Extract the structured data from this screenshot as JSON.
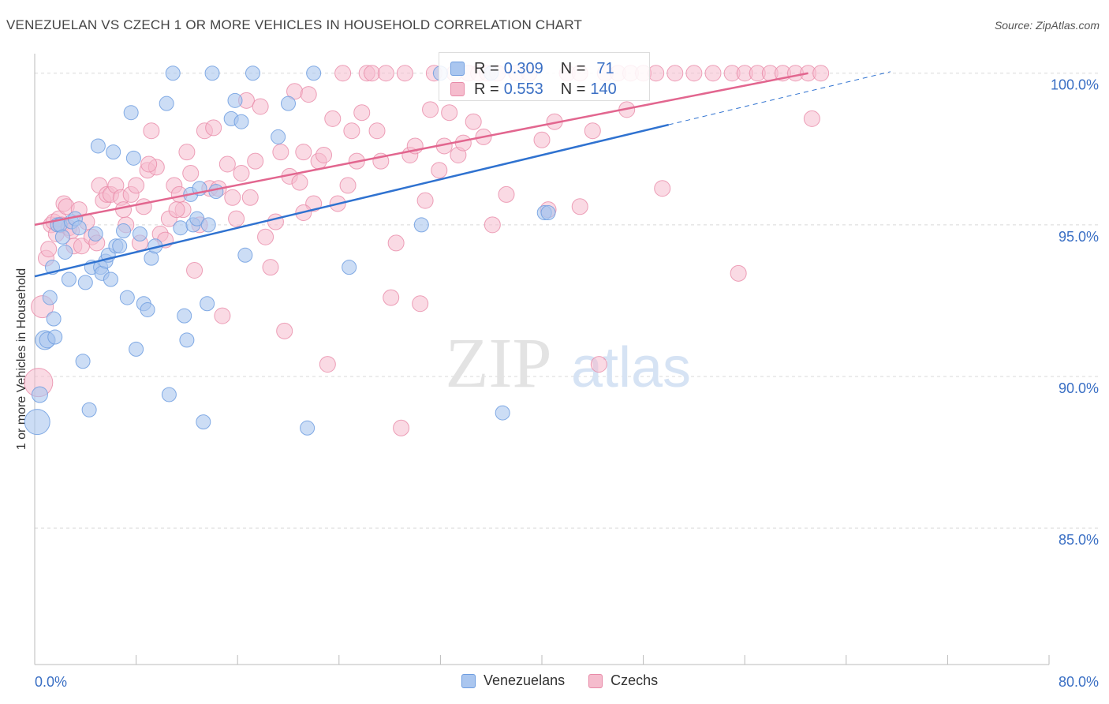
{
  "header": {
    "title": "VENEZUELAN VS CZECH 1 OR MORE VEHICLES IN HOUSEHOLD CORRELATION CHART",
    "source": "Source: ZipAtlas.com"
  },
  "watermark": {
    "zip": "ZIP",
    "atlas": "atlas"
  },
  "legend": {
    "rows": [
      {
        "r_label": "R =",
        "r_value": "0.309",
        "n_label": "N =",
        "n_value": "71"
      },
      {
        "r_label": "R =",
        "r_value": "0.553",
        "n_label": "N =",
        "n_value": "140"
      }
    ]
  },
  "bottom_legend": {
    "venezuelans": "Venezuelans",
    "czechs": "Czechs"
  },
  "colors": {
    "blue_fill": "#aac6ef",
    "blue_stroke": "#6e9de0",
    "blue_line": "#2f72d0",
    "pink_fill": "#f5bccd",
    "pink_stroke": "#e88aa8",
    "pink_line": "#e2668f",
    "axis_text": "#3a6fc4"
  },
  "chart_data": {
    "type": "scatter",
    "title": "VENEZUELAN VS CZECH 1 OR MORE VEHICLES IN HOUSEHOLD CORRELATION CHART",
    "xlabel": "",
    "ylabel": "1 or more Vehicles in Household",
    "xlim": [
      0,
      80
    ],
    "ylim": [
      80.5,
      100.8
    ],
    "x_tick_labels": [
      "0.0%",
      "80.0%"
    ],
    "y_ticks": [
      85,
      90,
      95,
      100
    ],
    "y_tick_labels": [
      "85.0%",
      "90.0%",
      "95.0%",
      "100.0%"
    ],
    "series": [
      {
        "name": "Venezuelans",
        "r": 0.309,
        "n": 71,
        "trend": {
          "x0": 0,
          "y0": 93.3,
          "x1": 50,
          "y1": 98.3,
          "dashed_to_x": 67.5,
          "dashed_to_y": 100.05
        },
        "points": [
          [
            0.2,
            88.5,
            16
          ],
          [
            0.4,
            89.4,
            10
          ],
          [
            0.8,
            91.2,
            12
          ],
          [
            1.0,
            91.2,
            10
          ],
          [
            1.2,
            92.6,
            9
          ],
          [
            1.4,
            93.6,
            9
          ],
          [
            1.5,
            91.9,
            9
          ],
          [
            1.6,
            91.3,
            9
          ],
          [
            1.8,
            95.0,
            9
          ],
          [
            2.0,
            95.0,
            9
          ],
          [
            2.2,
            94.6,
            9
          ],
          [
            2.4,
            94.1,
            9
          ],
          [
            2.7,
            93.2,
            9
          ],
          [
            2.9,
            95.1,
            9
          ],
          [
            3.2,
            95.2,
            9
          ],
          [
            3.5,
            94.9,
            9
          ],
          [
            3.8,
            90.5,
            9
          ],
          [
            4.0,
            93.1,
            9
          ],
          [
            4.3,
            88.9,
            9
          ],
          [
            4.5,
            93.6,
            9
          ],
          [
            4.8,
            94.7,
            9
          ],
          [
            5.0,
            97.6,
            9
          ],
          [
            5.2,
            93.6,
            9
          ],
          [
            5.3,
            93.4,
            9
          ],
          [
            5.6,
            93.8,
            9
          ],
          [
            5.8,
            94.0,
            9
          ],
          [
            6.0,
            93.2,
            9
          ],
          [
            6.2,
            97.4,
            9
          ],
          [
            6.4,
            94.3,
            9
          ],
          [
            6.7,
            94.3,
            9
          ],
          [
            7.0,
            94.8,
            9
          ],
          [
            7.3,
            92.6,
            9
          ],
          [
            7.6,
            98.7,
            9
          ],
          [
            7.8,
            97.2,
            9
          ],
          [
            8.0,
            90.9,
            9
          ],
          [
            8.3,
            94.7,
            9
          ],
          [
            8.6,
            92.4,
            9
          ],
          [
            8.9,
            92.2,
            9
          ],
          [
            9.2,
            93.9,
            9
          ],
          [
            9.5,
            94.3,
            9
          ],
          [
            10.4,
            99.0,
            9
          ],
          [
            10.6,
            89.4,
            9
          ],
          [
            10.9,
            100.0,
            9
          ],
          [
            11.5,
            94.9,
            9
          ],
          [
            11.8,
            92.0,
            9
          ],
          [
            12.0,
            91.2,
            9
          ],
          [
            12.3,
            96.0,
            9
          ],
          [
            12.5,
            95.0,
            9
          ],
          [
            12.8,
            95.2,
            9
          ],
          [
            13.0,
            96.2,
            9
          ],
          [
            13.3,
            88.5,
            9
          ],
          [
            13.6,
            92.4,
            9
          ],
          [
            13.7,
            95.0,
            9
          ],
          [
            14.0,
            100.0,
            9
          ],
          [
            14.3,
            96.1,
            9
          ],
          [
            15.5,
            98.5,
            9
          ],
          [
            15.8,
            99.1,
            9
          ],
          [
            16.3,
            98.4,
            9
          ],
          [
            16.6,
            94.0,
            9
          ],
          [
            17.2,
            100.0,
            9
          ],
          [
            19.2,
            97.9,
            9
          ],
          [
            20.0,
            99.0,
            9
          ],
          [
            21.5,
            88.3,
            9
          ],
          [
            22.0,
            100.0,
            9
          ],
          [
            24.8,
            93.6,
            9
          ],
          [
            30.5,
            95.0,
            9
          ],
          [
            32.0,
            100.0,
            9
          ],
          [
            36.0,
            100.0,
            9
          ],
          [
            36.9,
            88.8,
            9
          ],
          [
            40.2,
            95.4,
            9
          ],
          [
            40.5,
            95.4,
            9
          ]
        ]
      },
      {
        "name": "Czechs",
        "r": 0.553,
        "n": 140,
        "trend": {
          "x0": 0,
          "y0": 95.0,
          "x1": 61,
          "y1": 100.0
        },
        "points": [
          [
            0.3,
            89.8,
            18
          ],
          [
            0.6,
            92.3,
            14
          ],
          [
            0.9,
            93.9,
            10
          ],
          [
            1.1,
            94.2,
            10
          ],
          [
            1.3,
            95.0,
            10
          ],
          [
            1.5,
            95.1,
            10
          ],
          [
            1.7,
            94.7,
            10
          ],
          [
            1.9,
            95.2,
            10
          ],
          [
            2.1,
            95.0,
            10
          ],
          [
            2.3,
            95.7,
            10
          ],
          [
            2.5,
            95.6,
            10
          ],
          [
            2.7,
            94.9,
            10
          ],
          [
            2.9,
            94.8,
            10
          ],
          [
            3.1,
            94.3,
            10
          ],
          [
            3.5,
            95.5,
            10
          ],
          [
            3.7,
            94.3,
            10
          ],
          [
            4.1,
            95.1,
            10
          ],
          [
            4.5,
            94.6,
            10
          ],
          [
            4.9,
            94.4,
            10
          ],
          [
            5.1,
            96.3,
            10
          ],
          [
            5.4,
            95.8,
            10
          ],
          [
            5.7,
            96.0,
            10
          ],
          [
            6.0,
            96.0,
            10
          ],
          [
            6.4,
            96.3,
            10
          ],
          [
            6.8,
            95.9,
            10
          ],
          [
            7.2,
            95.0,
            10
          ],
          [
            7.6,
            96.0,
            10
          ],
          [
            8.0,
            96.3,
            10
          ],
          [
            8.3,
            94.4,
            10
          ],
          [
            8.6,
            95.6,
            10
          ],
          [
            8.9,
            96.8,
            10
          ],
          [
            9.2,
            98.1,
            10
          ],
          [
            9.6,
            96.9,
            10
          ],
          [
            9.9,
            94.7,
            10
          ],
          [
            10.3,
            94.5,
            10
          ],
          [
            10.6,
            95.2,
            10
          ],
          [
            11.0,
            96.3,
            10
          ],
          [
            11.4,
            96.0,
            10
          ],
          [
            11.7,
            95.5,
            10
          ],
          [
            12.0,
            97.4,
            10
          ],
          [
            12.3,
            96.7,
            10
          ],
          [
            12.6,
            93.5,
            10
          ],
          [
            13.0,
            95.0,
            10
          ],
          [
            13.4,
            98.1,
            10
          ],
          [
            13.8,
            96.2,
            10
          ],
          [
            14.1,
            98.2,
            10
          ],
          [
            14.5,
            96.2,
            10
          ],
          [
            14.8,
            92.0,
            10
          ],
          [
            15.2,
            97.0,
            10
          ],
          [
            15.6,
            95.9,
            10
          ],
          [
            15.9,
            95.2,
            10
          ],
          [
            16.3,
            96.7,
            10
          ],
          [
            16.7,
            99.1,
            10
          ],
          [
            17.0,
            95.9,
            10
          ],
          [
            17.4,
            97.1,
            10
          ],
          [
            17.8,
            98.9,
            10
          ],
          [
            18.2,
            94.6,
            10
          ],
          [
            18.6,
            93.6,
            10
          ],
          [
            19.0,
            95.1,
            10
          ],
          [
            19.4,
            97.4,
            10
          ],
          [
            19.7,
            91.5,
            10
          ],
          [
            20.1,
            96.6,
            10
          ],
          [
            20.5,
            99.4,
            10
          ],
          [
            20.9,
            96.4,
            10
          ],
          [
            21.2,
            97.4,
            10
          ],
          [
            21.6,
            99.3,
            10
          ],
          [
            22.0,
            95.7,
            10
          ],
          [
            22.4,
            97.1,
            10
          ],
          [
            22.8,
            97.3,
            10
          ],
          [
            23.1,
            90.4,
            10
          ],
          [
            23.5,
            98.5,
            10
          ],
          [
            23.9,
            95.7,
            10
          ],
          [
            24.3,
            100.0,
            10
          ],
          [
            24.7,
            96.3,
            10
          ],
          [
            25.0,
            98.1,
            10
          ],
          [
            25.4,
            97.1,
            10
          ],
          [
            25.8,
            98.7,
            10
          ],
          [
            26.2,
            100.0,
            10
          ],
          [
            26.6,
            100.0,
            10
          ],
          [
            27.0,
            98.1,
            10
          ],
          [
            27.3,
            97.1,
            10
          ],
          [
            27.7,
            100.0,
            10
          ],
          [
            28.1,
            92.6,
            10
          ],
          [
            28.5,
            94.4,
            10
          ],
          [
            28.9,
            88.3,
            10
          ],
          [
            29.2,
            100.0,
            10
          ],
          [
            29.6,
            97.3,
            10
          ],
          [
            30.0,
            97.6,
            10
          ],
          [
            30.4,
            92.4,
            10
          ],
          [
            30.8,
            95.8,
            10
          ],
          [
            31.2,
            98.8,
            10
          ],
          [
            31.5,
            100.0,
            10
          ],
          [
            31.9,
            96.8,
            10
          ],
          [
            32.3,
            97.6,
            10
          ],
          [
            32.7,
            98.7,
            10
          ],
          [
            33.1,
            100.0,
            10
          ],
          [
            33.4,
            97.3,
            10
          ],
          [
            33.8,
            97.7,
            10
          ],
          [
            34.2,
            100.0,
            10
          ],
          [
            34.6,
            98.4,
            10
          ],
          [
            35.0,
            100.0,
            10
          ],
          [
            35.4,
            97.9,
            10
          ],
          [
            35.7,
            100.0,
            10
          ],
          [
            36.1,
            95.0,
            10
          ],
          [
            36.5,
            100.0,
            10
          ],
          [
            37.2,
            96.0,
            10
          ],
          [
            38.0,
            100.0,
            10
          ],
          [
            39.0,
            100.0,
            10
          ],
          [
            40.0,
            97.8,
            10
          ],
          [
            41.0,
            98.4,
            10
          ],
          [
            42.0,
            100.0,
            10
          ],
          [
            43.0,
            100.0,
            10
          ],
          [
            44.0,
            98.1,
            10
          ],
          [
            44.5,
            90.4,
            10
          ],
          [
            45.0,
            100.0,
            10
          ],
          [
            46.0,
            100.0,
            10
          ],
          [
            46.7,
            98.8,
            10
          ],
          [
            47.0,
            100.0,
            10
          ],
          [
            48.0,
            100.0,
            10
          ],
          [
            49.0,
            100.0,
            10
          ],
          [
            49.5,
            96.2,
            10
          ],
          [
            50.5,
            100.0,
            10
          ],
          [
            52.0,
            100.0,
            10
          ],
          [
            53.5,
            100.0,
            10
          ],
          [
            55.0,
            100.0,
            10
          ],
          [
            55.5,
            93.4,
            10
          ],
          [
            56.0,
            100.0,
            10
          ],
          [
            57.0,
            100.0,
            10
          ],
          [
            58.0,
            100.0,
            10
          ],
          [
            59.0,
            100.0,
            10
          ],
          [
            60.0,
            100.0,
            10
          ],
          [
            61.0,
            100.0,
            10
          ],
          [
            61.3,
            98.5,
            10
          ],
          [
            62.0,
            100.0,
            10
          ],
          [
            43.0,
            95.6,
            10
          ],
          [
            40.5,
            95.5,
            10
          ],
          [
            11.2,
            95.5,
            10
          ],
          [
            7.0,
            95.5,
            10
          ],
          [
            21.2,
            95.4,
            10
          ],
          [
            9.0,
            97.0,
            10
          ]
        ]
      }
    ]
  }
}
